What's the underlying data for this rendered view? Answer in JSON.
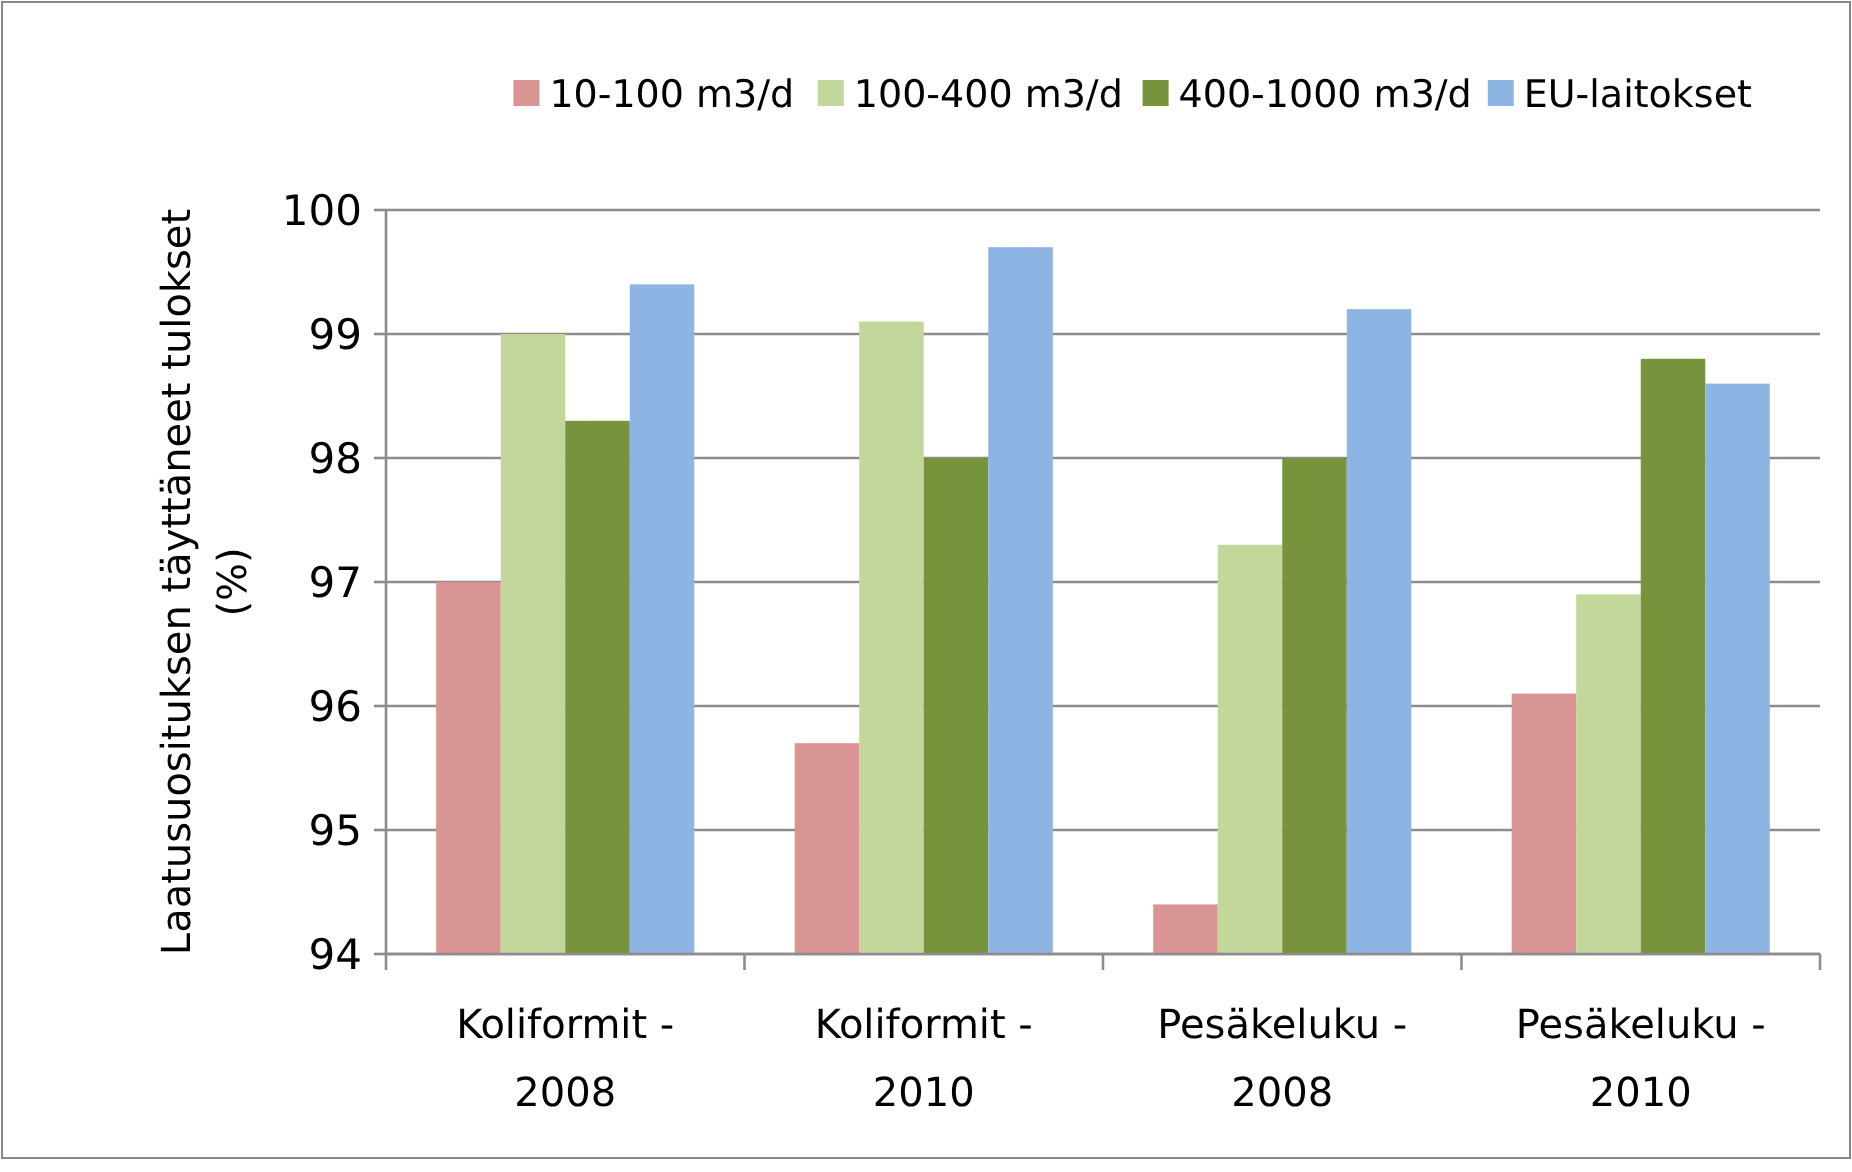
{
  "chart_data": {
    "type": "bar",
    "ylabel": "Laatusuosituksen täyttäneet tulokset (%)",
    "categories": [
      "Koliformit - 2008",
      "Koliformit - 2010",
      "Pesäkeluku - 2008",
      "Pesäkeluku - 2010"
    ],
    "series": [
      {
        "name": "10-100 m3/d",
        "color": "#d99594",
        "values": [
          97.0,
          95.7,
          94.4,
          96.1
        ]
      },
      {
        "name": "100-400 m3/d",
        "color": "#c4d79b",
        "values": [
          99.0,
          99.1,
          97.3,
          96.9
        ]
      },
      {
        "name": "400-1000 m3/d",
        "color": "#77933c",
        "values": [
          98.3,
          98.0,
          98.0,
          98.8
        ]
      },
      {
        "name": "EU-laitokset",
        "color": "#8eb4e3",
        "values": [
          99.4,
          99.7,
          99.2,
          98.6
        ]
      }
    ],
    "ylim": [
      94,
      100
    ],
    "yticks": [
      94,
      95,
      96,
      97,
      98,
      99,
      100
    ],
    "grid": "y",
    "legend": "top"
  }
}
